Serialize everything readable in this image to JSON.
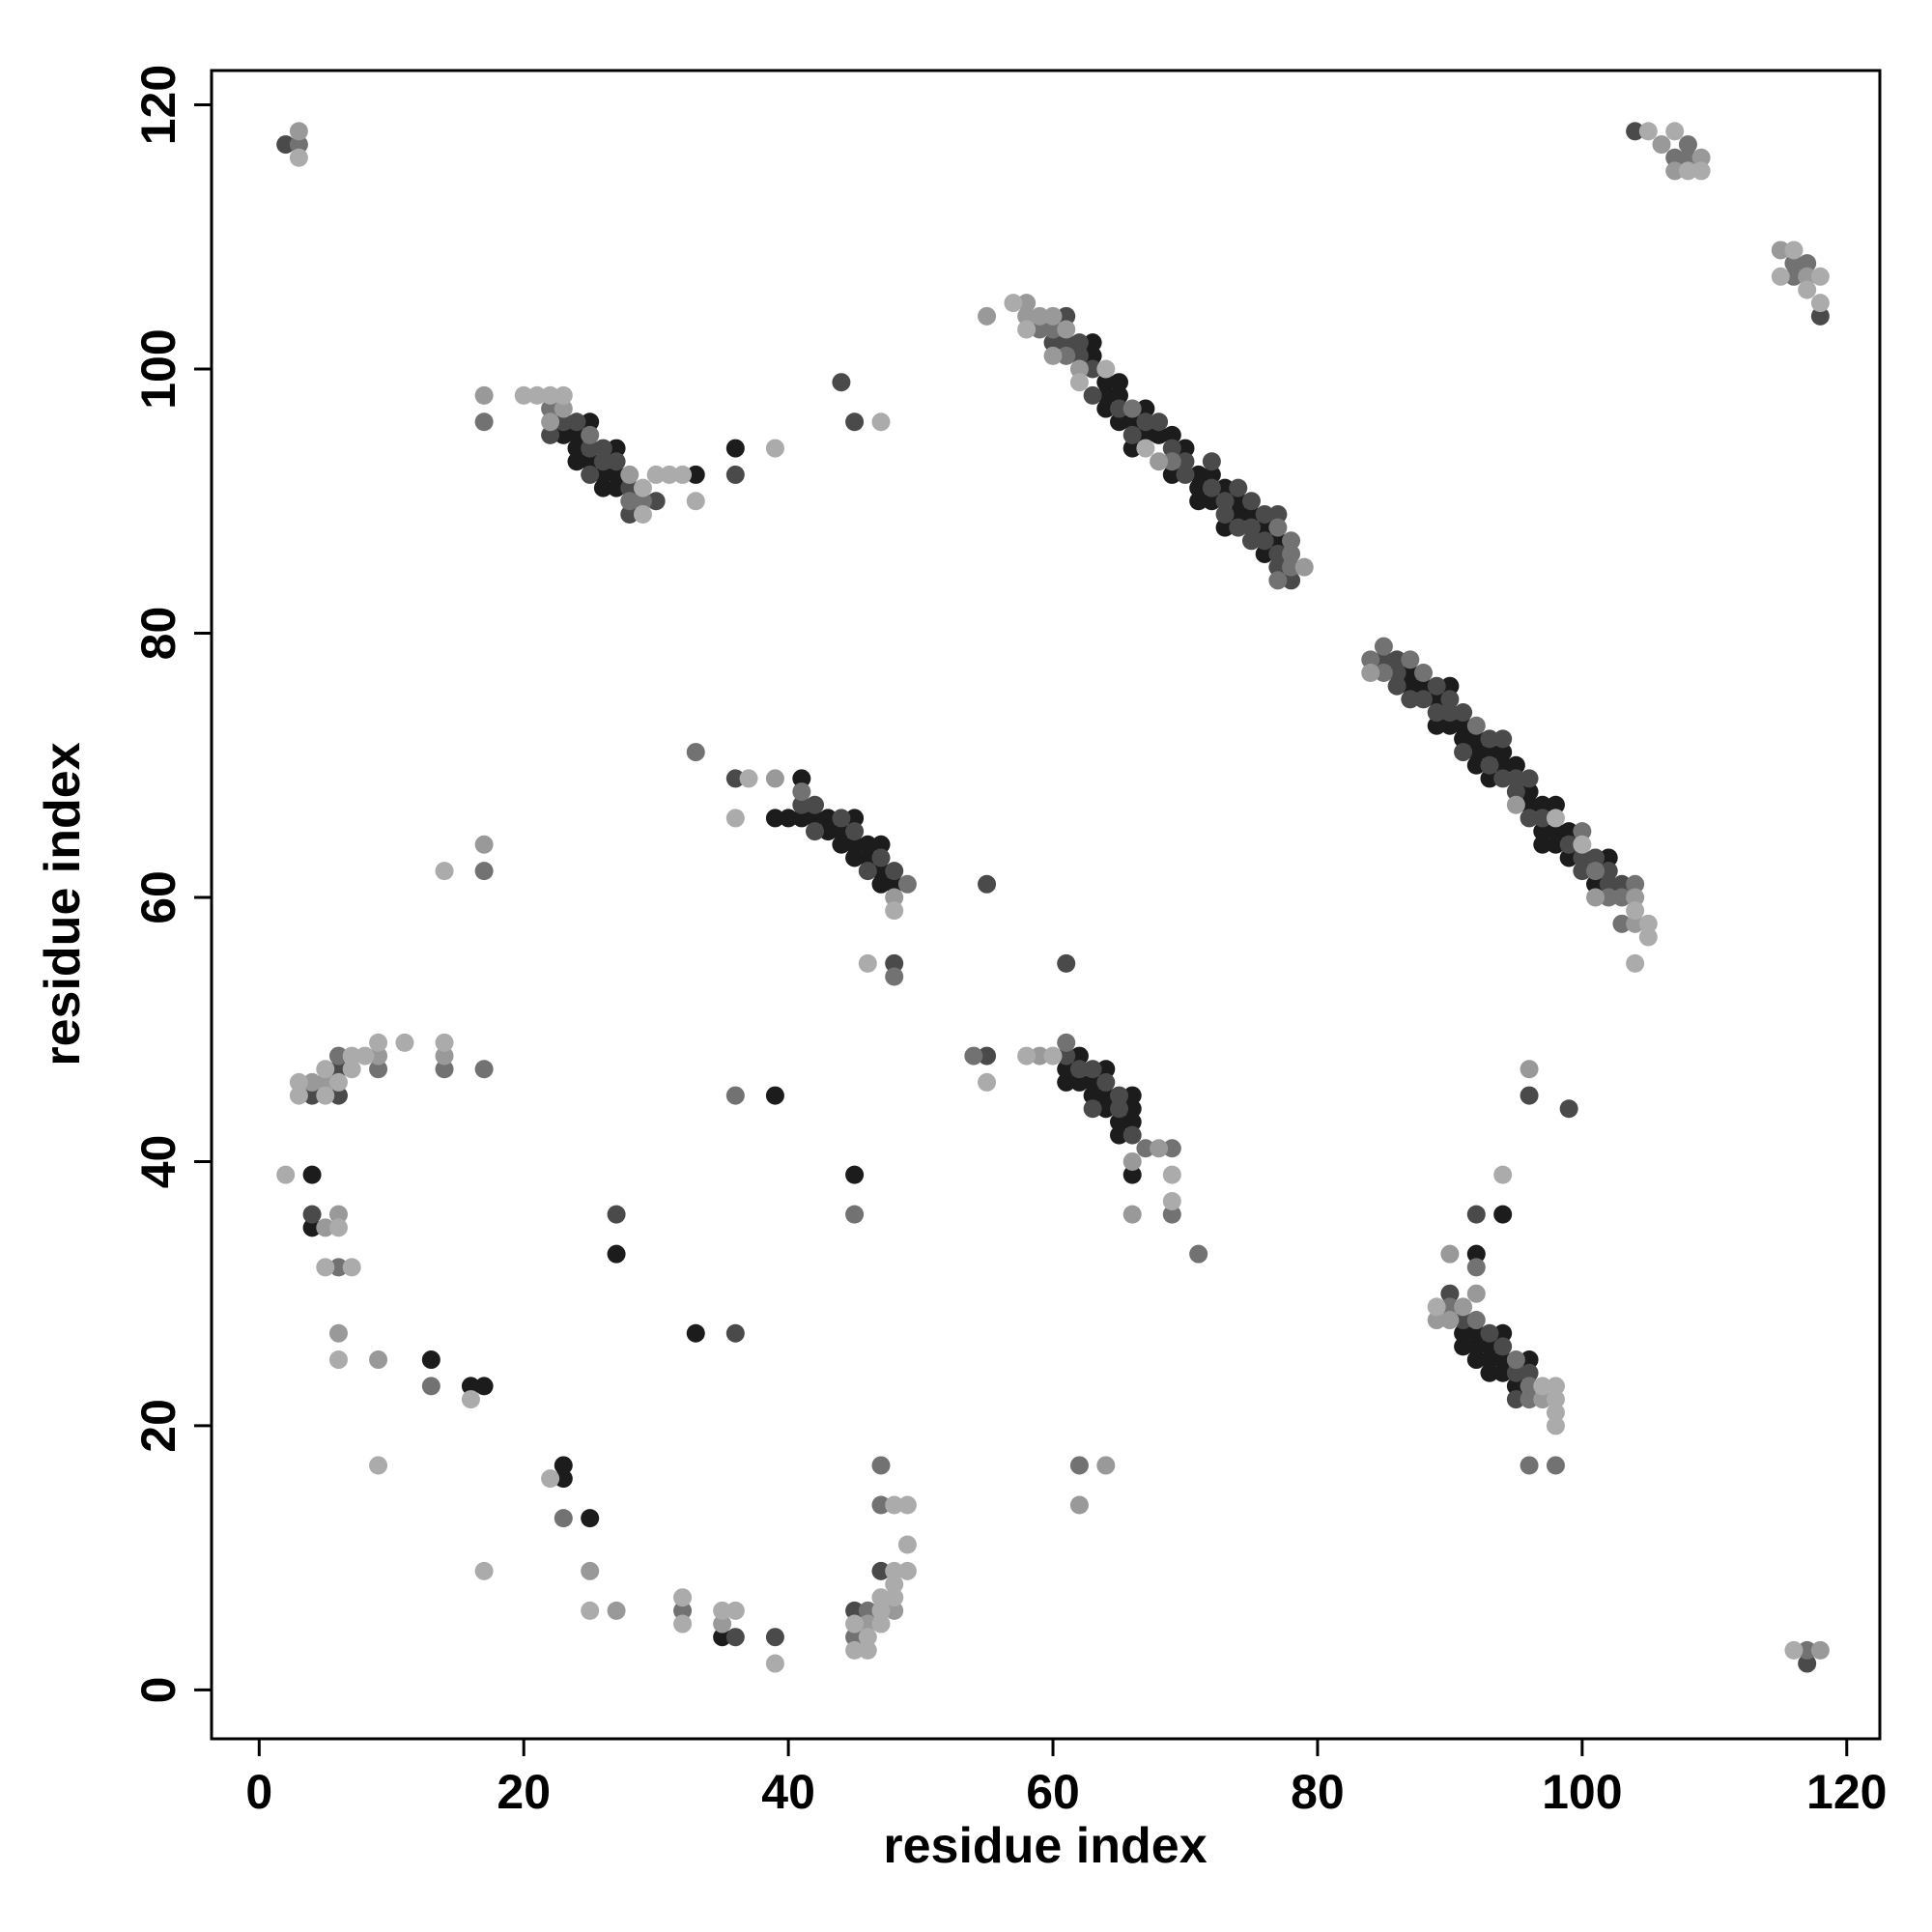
{
  "chart_data": {
    "type": "scatter",
    "x_label": "residue index",
    "y_label": "residue index",
    "xlim": [
      -3.6,
      122.5
    ],
    "ylim": [
      -3.7,
      122.6
    ],
    "xticks": [
      0,
      20,
      40,
      60,
      80,
      100,
      120
    ],
    "yticks": [
      0,
      20,
      40,
      60,
      80,
      100,
      120
    ],
    "grid": false,
    "series": [
      {
        "color": "#1c1c1c",
        "x": [
          4,
          4,
          13,
          16,
          17,
          23,
          23,
          25,
          27,
          33,
          35,
          39,
          45,
          33,
          36,
          39,
          94,
          92,
          63,
          63,
          64,
          64,
          64,
          65,
          65,
          65,
          66,
          66,
          67,
          67,
          68,
          69,
          69,
          70,
          71,
          71,
          71,
          72,
          72,
          73,
          73,
          74,
          74,
          75,
          76,
          76,
          77,
          87,
          87,
          88,
          89,
          89,
          90,
          90,
          91,
          91,
          92,
          92,
          92,
          93,
          93,
          94,
          94,
          95,
          96,
          96,
          97,
          97,
          97,
          98,
          98,
          98,
          99,
          99,
          101,
          102,
          23,
          24,
          24,
          24,
          25,
          25,
          26,
          26,
          27,
          27,
          27,
          40,
          41,
          41,
          42,
          43,
          43,
          44,
          44,
          45,
          45,
          45,
          46,
          46,
          47,
          47,
          47,
          48,
          61,
          61,
          62,
          62,
          63,
          63,
          64,
          64,
          64,
          65,
          65,
          66,
          66,
          66,
          66,
          91,
          91,
          92,
          92,
          92,
          93,
          93,
          93,
          94,
          94,
          94,
          95,
          96
        ],
        "values": [
          39,
          35,
          25,
          23,
          23,
          17,
          16,
          13,
          33,
          27,
          4,
          45,
          39,
          92,
          94,
          66,
          36,
          33,
          102,
          101,
          99,
          98,
          97,
          99,
          98,
          96,
          96,
          94,
          97,
          95,
          95,
          95,
          92,
          94,
          92,
          91,
          90,
          92,
          90,
          91,
          88,
          90,
          89,
          89,
          88,
          86,
          87,
          77,
          76,
          76,
          75,
          73,
          76,
          73,
          73,
          72,
          72,
          71,
          70,
          71,
          69,
          71,
          70,
          70,
          68,
          67,
          67,
          65,
          64,
          67,
          65,
          64,
          65,
          63,
          61,
          63,
          95,
          95,
          94,
          93,
          96,
          93,
          92,
          91,
          94,
          92,
          91,
          66,
          69,
          66,
          66,
          66,
          65,
          65,
          64,
          66,
          64,
          63,
          64,
          63,
          64,
          62,
          61,
          61,
          47,
          46,
          48,
          46,
          46,
          45,
          47,
          45,
          44,
          43,
          42,
          45,
          44,
          43,
          39,
          27,
          26,
          27,
          26,
          25,
          26,
          25,
          24,
          27,
          25,
          24,
          23,
          25
        ]
      },
      {
        "color": "#4a4a4a",
        "x": [
          2,
          104,
          118,
          4,
          6,
          6,
          4,
          27,
          36,
          36,
          39,
          45,
          47,
          36,
          44,
          45,
          36,
          48,
          55,
          61,
          55,
          96,
          99,
          92,
          117,
          60,
          61,
          61,
          62,
          62,
          63,
          63,
          65,
          66,
          67,
          68,
          69,
          70,
          70,
          72,
          72,
          73,
          73,
          74,
          74,
          75,
          75,
          75,
          76,
          76,
          77,
          77,
          77,
          78,
          85,
          86,
          86,
          86,
          87,
          88,
          89,
          89,
          90,
          90,
          91,
          91,
          93,
          93,
          94,
          94,
          95,
          95,
          96,
          96,
          97,
          99,
          100,
          100,
          101,
          102,
          102,
          103,
          22,
          23,
          24,
          25,
          25,
          26,
          26,
          27,
          28,
          28,
          30,
          41,
          42,
          42,
          44,
          45,
          46,
          47,
          48,
          61,
          62,
          63,
          63,
          64,
          65,
          65,
          66,
          90,
          91,
          93,
          94,
          95,
          95,
          96
        ],
        "values": [
          117,
          118,
          104,
          45,
          47,
          45,
          36,
          36,
          27,
          4,
          4,
          6,
          9,
          92,
          99,
          96,
          69,
          55,
          61,
          55,
          48,
          45,
          44,
          36,
          2,
          102,
          104,
          102,
          102,
          101,
          100,
          98,
          97,
          95,
          96,
          96,
          94,
          93,
          92,
          93,
          91,
          90,
          89,
          91,
          88,
          90,
          88,
          87,
          89,
          87,
          89,
          86,
          85,
          84,
          78,
          78,
          77,
          76,
          75,
          75,
          76,
          74,
          75,
          74,
          74,
          71,
          72,
          70,
          72,
          69,
          69,
          68,
          69,
          66,
          66,
          64,
          63,
          62,
          63,
          62,
          61,
          61,
          95,
          96,
          96,
          94,
          92,
          94,
          93,
          93,
          91,
          89,
          90,
          67,
          67,
          65,
          66,
          65,
          62,
          63,
          62,
          48,
          47,
          47,
          44,
          46,
          45,
          44,
          42,
          30,
          28,
          27,
          26,
          24,
          22,
          24
        ]
      },
      {
        "color": "#727272",
        "x": [
          3,
          107,
          108,
          108,
          116,
          117,
          116,
          6,
          9,
          14,
          17,
          17,
          17,
          6,
          13,
          23,
          32,
          36,
          45,
          45,
          46,
          47,
          47,
          33,
          48,
          54,
          69,
          71,
          62,
          92,
          96,
          98,
          117,
          59,
          60,
          61,
          66,
          69,
          77,
          77,
          78,
          78,
          78,
          84,
          85,
          85,
          87,
          88,
          92,
          100,
          101,
          102,
          103,
          103,
          104,
          22,
          25,
          28,
          29,
          41,
          49,
          61,
          67,
          69,
          90,
          92,
          95,
          96,
          96
        ],
        "values": [
          117,
          116,
          117,
          116,
          108,
          108,
          107,
          48,
          47,
          47,
          47,
          62,
          96,
          32,
          23,
          13,
          6,
          45,
          36,
          4,
          6,
          17,
          14,
          71,
          54,
          48,
          36,
          33,
          17,
          32,
          17,
          17,
          3,
          103,
          103,
          101,
          97,
          93,
          88,
          84,
          87,
          86,
          85,
          78,
          79,
          77,
          78,
          77,
          73,
          65,
          62,
          60,
          60,
          58,
          61,
          97,
          95,
          90,
          90,
          68,
          61,
          49,
          41,
          41,
          29,
          28,
          25,
          23,
          22
        ]
      },
      {
        "color": "#999999",
        "x": [
          3,
          106,
          107,
          109,
          115,
          117,
          4,
          5,
          9,
          14,
          17,
          17,
          5,
          6,
          6,
          9,
          25,
          27,
          35,
          46,
          48,
          39,
          55,
          59,
          66,
          64,
          62,
          96,
          90,
          92,
          118,
          58,
          58,
          59,
          60,
          60,
          61,
          62,
          68,
          79,
          84,
          95,
          101,
          104,
          104,
          22,
          23,
          28,
          48,
          66,
          68,
          89,
          90,
          91,
          97
        ],
        "values": [
          118,
          117,
          115,
          116,
          109,
          107,
          46,
          46,
          48,
          48,
          64,
          98,
          35,
          36,
          27,
          25,
          9,
          6,
          5,
          5,
          6,
          69,
          104,
          48,
          36,
          17,
          14,
          47,
          33,
          30,
          3,
          105,
          104,
          104,
          104,
          101,
          103,
          100,
          93,
          85,
          77,
          67,
          60,
          60,
          58,
          96,
          97,
          92,
          60,
          40,
          41,
          28,
          28,
          29,
          22
        ]
      },
      {
        "color": "#ababab",
        "x": [
          3,
          105,
          107,
          108,
          109,
          116,
          115,
          117,
          118,
          118,
          3,
          3,
          5,
          5,
          6,
          7,
          7,
          8,
          9,
          11,
          14,
          14,
          2,
          6,
          5,
          7,
          6,
          16,
          9,
          17,
          22,
          25,
          32,
          32,
          35,
          36,
          39,
          45,
          45,
          46,
          46,
          47,
          47,
          47,
          48,
          48,
          48,
          48,
          49,
          49,
          49,
          31,
          32,
          33,
          39,
          47,
          37,
          36,
          46,
          48,
          55,
          58,
          69,
          69,
          94,
          104,
          116,
          57,
          58,
          62,
          64,
          67,
          98,
          100,
          104,
          105,
          105,
          20,
          21,
          22,
          23,
          29,
          29,
          30,
          60,
          89,
          97,
          98,
          98,
          98,
          98
        ],
        "values": [
          116,
          118,
          118,
          115,
          115,
          109,
          107,
          106,
          107,
          105,
          46,
          45,
          47,
          45,
          46,
          48,
          47,
          48,
          49,
          49,
          49,
          62,
          39,
          35,
          32,
          32,
          25,
          22,
          17,
          9,
          16,
          6,
          7,
          5,
          6,
          6,
          2,
          5,
          3,
          4,
          3,
          7,
          6,
          5,
          14,
          9,
          8,
          7,
          14,
          11,
          9,
          92,
          92,
          90,
          94,
          96,
          69,
          66,
          55,
          59,
          46,
          48,
          39,
          37,
          39,
          55,
          3,
          105,
          103,
          99,
          100,
          94,
          66,
          64,
          59,
          58,
          57,
          98,
          98,
          98,
          98,
          91,
          89,
          92,
          48,
          29,
          23,
          23,
          22,
          21,
          20
        ]
      }
    ]
  }
}
